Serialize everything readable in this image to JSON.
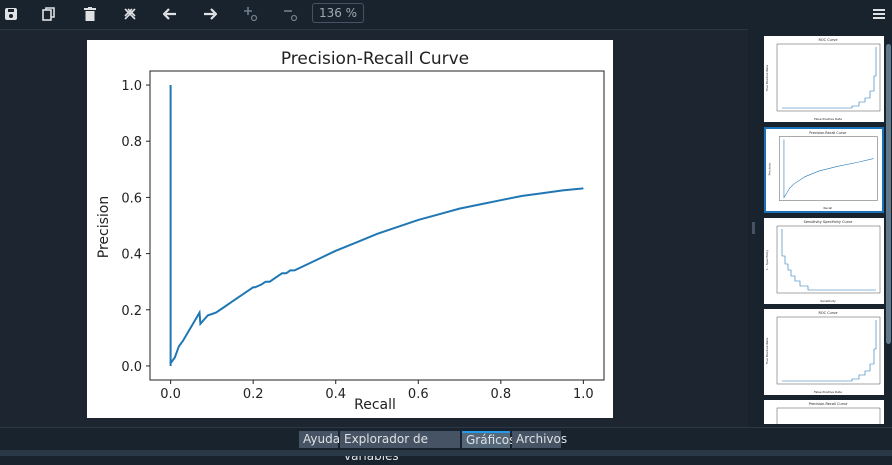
{
  "toolbar": {
    "zoom_label": "136 %",
    "buttons": [
      "save-icon",
      "copy-icon",
      "trash-icon",
      "close-all-icon",
      "arrow-left-icon",
      "arrow-right-icon",
      "zoom-in-icon",
      "zoom-out-icon"
    ],
    "menu_icon": "hamburger-menu-icon"
  },
  "chart_data": {
    "type": "line",
    "title": "Precision-Recall Curve",
    "xlabel": "Recall",
    "ylabel": "Precision",
    "xlim": [
      -0.05,
      1.05
    ],
    "ylim": [
      -0.05,
      1.05
    ],
    "xticks": [
      "0.0",
      "0.2",
      "0.4",
      "0.6",
      "0.8",
      "1.0"
    ],
    "yticks": [
      "0.0",
      "0.2",
      "0.4",
      "0.6",
      "0.8",
      "1.0"
    ],
    "grid": false,
    "line_color": "#1f77b4",
    "series": [
      {
        "x": [
          0.0,
          0.0,
          0.0,
          0.01,
          0.02,
          0.03,
          0.05,
          0.07,
          0.072,
          0.09,
          0.11,
          0.13,
          0.15,
          0.17,
          0.19,
          0.2,
          0.205,
          0.22,
          0.23,
          0.24,
          0.26,
          0.27,
          0.28,
          0.29,
          0.3,
          0.35,
          0.4,
          0.45,
          0.5,
          0.55,
          0.6,
          0.65,
          0.7,
          0.75,
          0.8,
          0.85,
          0.9,
          0.95,
          1.0
        ],
        "y": [
          1.0,
          0.0,
          0.01,
          0.03,
          0.07,
          0.09,
          0.14,
          0.19,
          0.15,
          0.18,
          0.19,
          0.21,
          0.23,
          0.25,
          0.27,
          0.28,
          0.28,
          0.29,
          0.3,
          0.3,
          0.32,
          0.33,
          0.33,
          0.34,
          0.34,
          0.375,
          0.41,
          0.44,
          0.47,
          0.495,
          0.52,
          0.54,
          0.56,
          0.575,
          0.59,
          0.605,
          0.615,
          0.625,
          0.632
        ]
      }
    ]
  },
  "thumbnails": [
    {
      "title": "ROC Curve",
      "xlabel": "False Positive Rate",
      "ylabel": "True Positive Rate",
      "selected": false
    },
    {
      "title": "Precision-Recall Curve",
      "xlabel": "Recall",
      "ylabel": "Precision",
      "selected": true
    },
    {
      "title": "Sensitivity Specificity Curve",
      "xlabel": "Sensitivity",
      "ylabel": "1 - Specificity",
      "selected": false
    },
    {
      "title": "ROC Curve",
      "xlabel": "False Positive Rate",
      "ylabel": "True Positive Rate",
      "selected": false
    },
    {
      "title": "Precision-Recall Curve",
      "xlabel": "",
      "ylabel": "",
      "selected": false
    }
  ],
  "tabs": [
    {
      "label": "Ayuda",
      "active": false
    },
    {
      "label": "Explorador de variables",
      "active": false
    },
    {
      "label": "Gráficos",
      "active": true
    },
    {
      "label": "Archivos",
      "active": false
    }
  ]
}
